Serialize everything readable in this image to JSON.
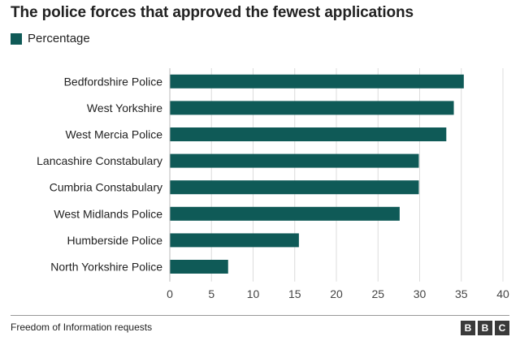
{
  "header": {
    "title": "The police forces that approved the fewest applications"
  },
  "legend": {
    "label": "Percentage",
    "color": "#0f5a57"
  },
  "chart_data": {
    "type": "bar",
    "orientation": "horizontal",
    "title": "The police forces that approved the fewest applications",
    "categories": [
      "Bedfordshire Police",
      "West Yorkshire",
      "West Mercia Police",
      "Lancashire Constabulary",
      "Cumbria Constabulary",
      "West Midlands Police",
      "Humberside Police",
      "North Yorkshire Police"
    ],
    "series": [
      {
        "name": "Percentage",
        "values": [
          35.3,
          34.1,
          33.2,
          29.9,
          29.9,
          27.6,
          15.5,
          7.0
        ]
      }
    ],
    "xlim": [
      0,
      40
    ],
    "ticks": [
      0,
      5,
      10,
      15,
      20,
      25,
      30,
      35,
      40
    ],
    "xlabel": "",
    "ylabel": "",
    "grid": "vertical",
    "legend_position": "top-left",
    "bar_color": "#0f5a57",
    "grid_color": "#dcdcdc"
  },
  "footer": {
    "source": "Freedom of Information requests",
    "logo_letters": [
      "B",
      "B",
      "C"
    ]
  }
}
